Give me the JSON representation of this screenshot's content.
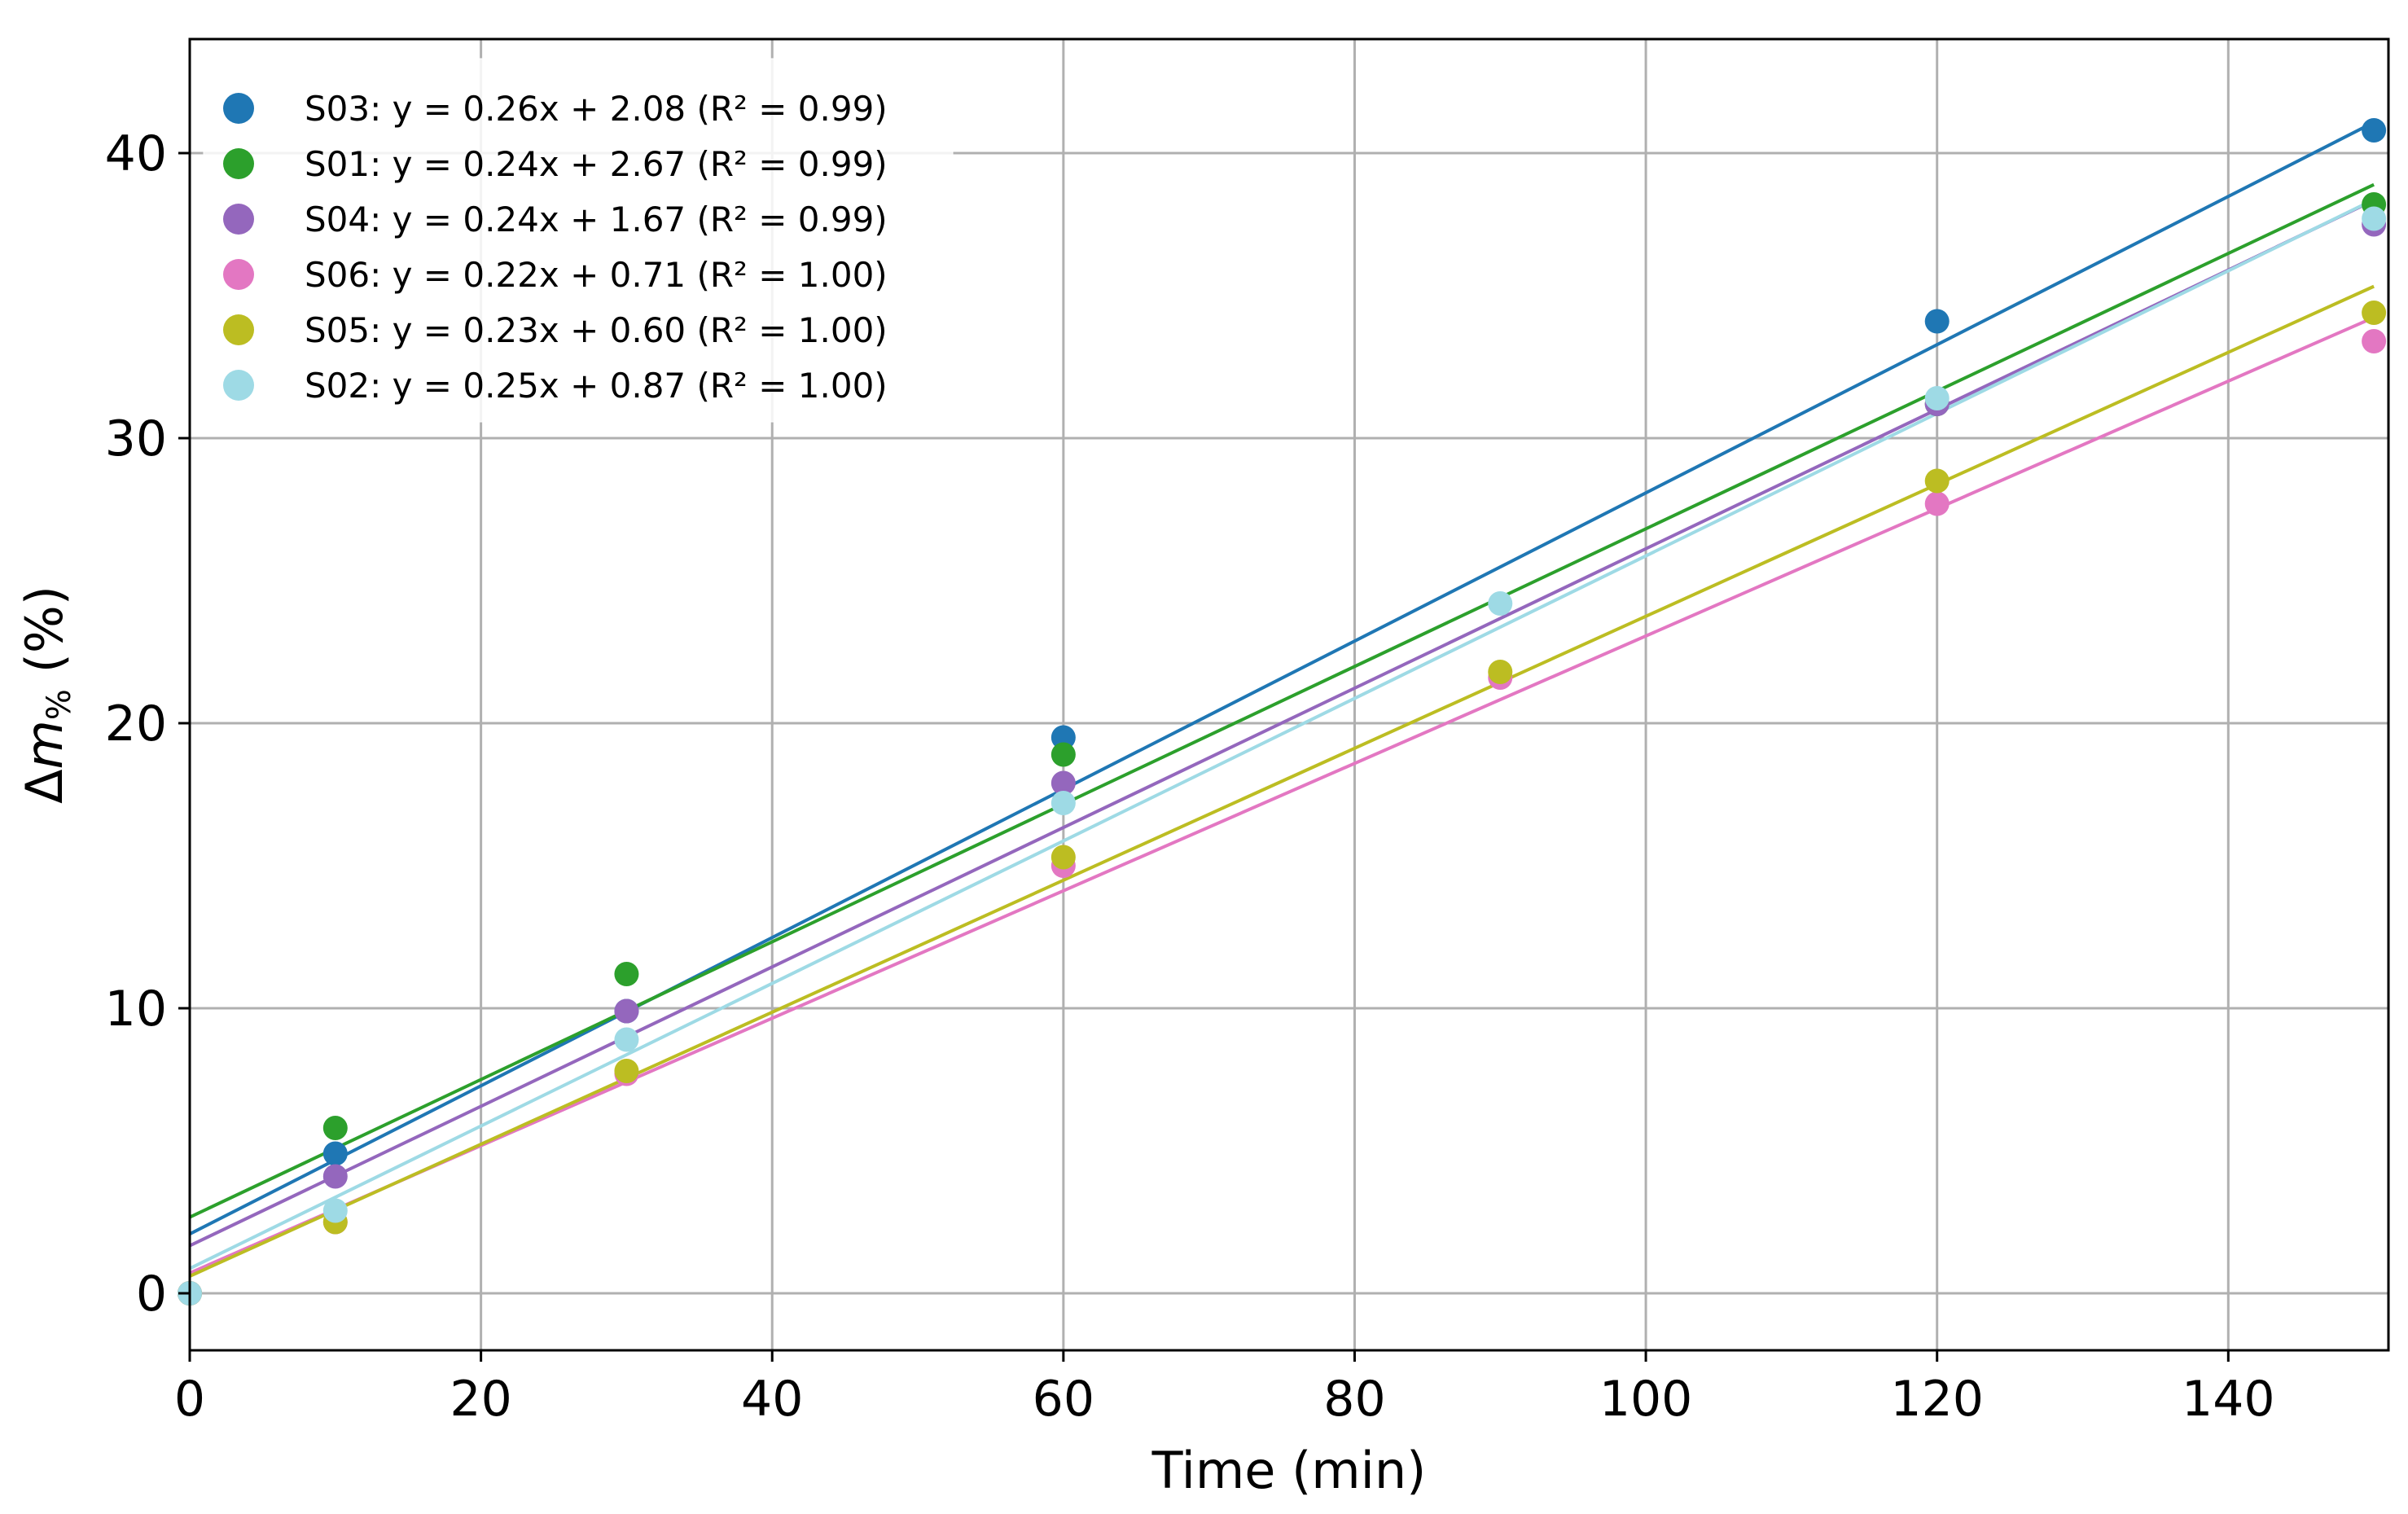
{
  "chart_data": {
    "type": "scatter",
    "xlabel": "Time (min)",
    "ylabel_prefix": "Δ",
    "ylabel_var": "m",
    "ylabel_sub": "%",
    "ylabel_suffix": " (%)",
    "xlim": [
      0,
      151
    ],
    "ylim": [
      -2,
      44
    ],
    "x_ticks": [
      0,
      20,
      40,
      60,
      80,
      100,
      120,
      140
    ],
    "y_ticks": [
      0,
      10,
      20,
      30,
      40
    ],
    "grid": true,
    "legend_position": "top-left",
    "series": [
      {
        "name": "S03",
        "label": "S03: y = 0.26x + 2.08 (R² = 0.99)",
        "color": "#1f77b4",
        "slope": 0.26,
        "intercept": 2.08,
        "points": [
          [
            0,
            0
          ],
          [
            10,
            4.9
          ],
          [
            30,
            9.9
          ],
          [
            60,
            19.5
          ],
          [
            120,
            34.1
          ],
          [
            150,
            40.8
          ]
        ]
      },
      {
        "name": "S01",
        "label": "S01: y = 0.24x + 2.67 (R² = 0.99)",
        "color": "#2ca02c",
        "slope": 0.2415,
        "intercept": 2.67,
        "points": [
          [
            0,
            0
          ],
          [
            10,
            5.8
          ],
          [
            30,
            11.2
          ],
          [
            60,
            18.9
          ],
          [
            120,
            31.2
          ],
          [
            150,
            38.2
          ]
        ]
      },
      {
        "name": "S04",
        "label": "S04: y = 0.24x + 1.67 (R² = 0.99)",
        "color": "#9467bd",
        "slope": 0.2445,
        "intercept": 1.67,
        "points": [
          [
            0,
            0
          ],
          [
            10,
            4.1
          ],
          [
            30,
            9.9
          ],
          [
            60,
            17.9
          ],
          [
            120,
            31.2
          ],
          [
            150,
            37.5
          ]
        ]
      },
      {
        "name": "S06",
        "label": "S06: y = 0.22x + 0.71 (R² = 1.00)",
        "color": "#e377c2",
        "slope": 0.2235,
        "intercept": 0.71,
        "points": [
          [
            0,
            0
          ],
          [
            10,
            2.5
          ],
          [
            30,
            7.7
          ],
          [
            60,
            15.0
          ],
          [
            90,
            21.6
          ],
          [
            120,
            27.7
          ],
          [
            150,
            33.4
          ]
        ]
      },
      {
        "name": "S05",
        "label": "S05: y = 0.23x + 0.60 (R² = 1.00)",
        "color": "#bcbd22",
        "slope": 0.2315,
        "intercept": 0.6,
        "points": [
          [
            0,
            0
          ],
          [
            10,
            2.5
          ],
          [
            30,
            7.8
          ],
          [
            60,
            15.3
          ],
          [
            90,
            21.8
          ],
          [
            120,
            28.5
          ],
          [
            150,
            34.4
          ]
        ]
      },
      {
        "name": "S02",
        "label": "S02: y = 0.25x + 0.87 (R² = 1.00)",
        "color": "#9edae5",
        "slope": 0.25,
        "intercept": 0.87,
        "points": [
          [
            0,
            0
          ],
          [
            10,
            2.9
          ],
          [
            30,
            8.9
          ],
          [
            60,
            17.2
          ],
          [
            90,
            24.2
          ],
          [
            120,
            31.4
          ],
          [
            150,
            37.7
          ]
        ]
      }
    ]
  }
}
